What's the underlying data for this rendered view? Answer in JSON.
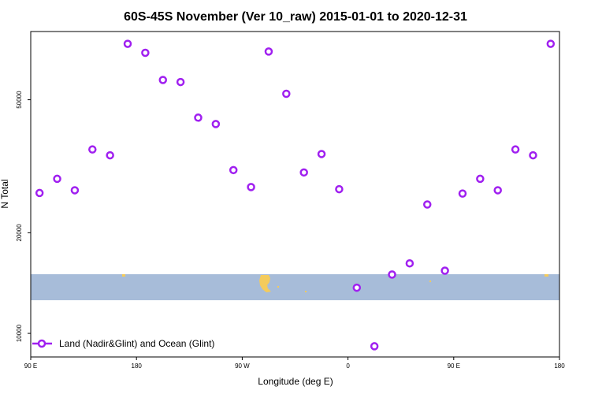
{
  "chart_data": {
    "type": "scatter",
    "title": "60S-45S November (Ver 10_raw)   2015-01-01 to 2020-12-31",
    "xlabel": "Longitude (deg E)",
    "ylabel": "N Total",
    "x_ticks": [
      {
        "value": 0,
        "label": "90 E"
      },
      {
        "value": 90,
        "label": "180"
      },
      {
        "value": 180,
        "label": "90 W"
      },
      {
        "value": 270,
        "label": "0"
      },
      {
        "value": 360,
        "label": "90 E"
      },
      {
        "value": 450,
        "label": "180"
      }
    ],
    "y_ticks": [
      10000,
      20000,
      50000
    ],
    "y_scale": "log",
    "xlim": [
      0,
      450
    ],
    "ylim": [
      8500,
      80000
    ],
    "grid": false,
    "legend_position": "bottom-left",
    "colors": {
      "series": "#a020f0",
      "ocean": "#a7bcd9",
      "land": "#f4cb5c"
    },
    "series": [
      {
        "name": "Land (Nadir&Glint) and Ocean (Glint)",
        "x": [
          7.5,
          22.5,
          37.5,
          52.5,
          67.5,
          82.5,
          97.5,
          112.5,
          127.5,
          142.5,
          157.5,
          172.5,
          187.5,
          202.5,
          217.5,
          232.5,
          247.5,
          262.5,
          277.5,
          292.5,
          307.5,
          322.5,
          337.5,
          352.5,
          367.5,
          382.5,
          397.5,
          412.5,
          427.5,
          442.5
        ],
        "values": [
          26300,
          29000,
          26800,
          35500,
          34100,
          73500,
          69100,
          57300,
          56500,
          44200,
          42300,
          30800,
          27400,
          69700,
          52100,
          30300,
          34400,
          27000,
          13700,
          9150,
          15000,
          16200,
          24300,
          15400,
          26200,
          29000,
          26800,
          35500,
          34100,
          73500
        ]
      }
    ]
  }
}
